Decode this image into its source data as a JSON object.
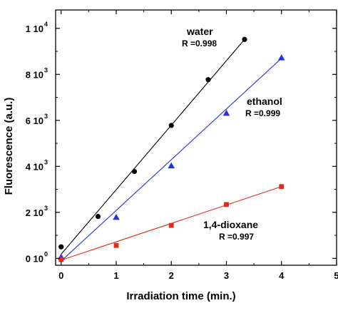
{
  "chart_data": {
    "type": "scatter",
    "title": "",
    "xlabel": "Irradiation time (min.)",
    "ylabel": "Fluorescence (a.u.)",
    "xlim": [
      -0.1,
      5
    ],
    "ylim": [
      -300,
      10800
    ],
    "grid": false,
    "x_ticks": [
      {
        "value": 0,
        "label": "0"
      },
      {
        "value": 1,
        "label": "1"
      },
      {
        "value": 2,
        "label": "2"
      },
      {
        "value": 3,
        "label": "3"
      },
      {
        "value": 4,
        "label": "4"
      },
      {
        "value": 5,
        "label": "5"
      }
    ],
    "y_ticks": [
      {
        "value": 0,
        "base": "0 10",
        "exp": "0"
      },
      {
        "value": 2000,
        "base": "2 10",
        "exp": "3"
      },
      {
        "value": 4000,
        "base": "4 10",
        "exp": "3"
      },
      {
        "value": 6000,
        "base": "6 10",
        "exp": "3"
      },
      {
        "value": 8000,
        "base": "8 10",
        "exp": "3"
      },
      {
        "value": 10000,
        "base": "1 10",
        "exp": "4"
      }
    ],
    "series": [
      {
        "name": "water",
        "r_label": "R =0.998",
        "color": "#000000",
        "marker": "circle",
        "x": [
          0,
          0.67,
          1.33,
          2.0,
          2.67,
          3.33
        ],
        "y": [
          500,
          1820,
          3780,
          5780,
          7770,
          9520
        ],
        "fit": {
          "x": [
            0,
            3.33
          ],
          "y": [
            180,
            9520
          ]
        }
      },
      {
        "name": "ethanol",
        "r_label": "R =0.999",
        "color": "#2233dd",
        "marker": "triangle",
        "x": [
          0,
          1,
          2,
          3,
          4
        ],
        "y": [
          50,
          1780,
          4020,
          6310,
          8720
        ],
        "fit": {
          "x": [
            0,
            4
          ],
          "y": [
            -120,
            8700
          ]
        }
      },
      {
        "name": "1,4-dioxane",
        "r_label": "R =0.997",
        "color": "#e02a1a",
        "marker": "square",
        "x": [
          0,
          1,
          2,
          3,
          4
        ],
        "y": [
          -50,
          560,
          1430,
          2340,
          3120
        ],
        "fit": {
          "x": [
            0,
            4
          ],
          "y": [
            -80,
            3120
          ]
        }
      }
    ]
  }
}
